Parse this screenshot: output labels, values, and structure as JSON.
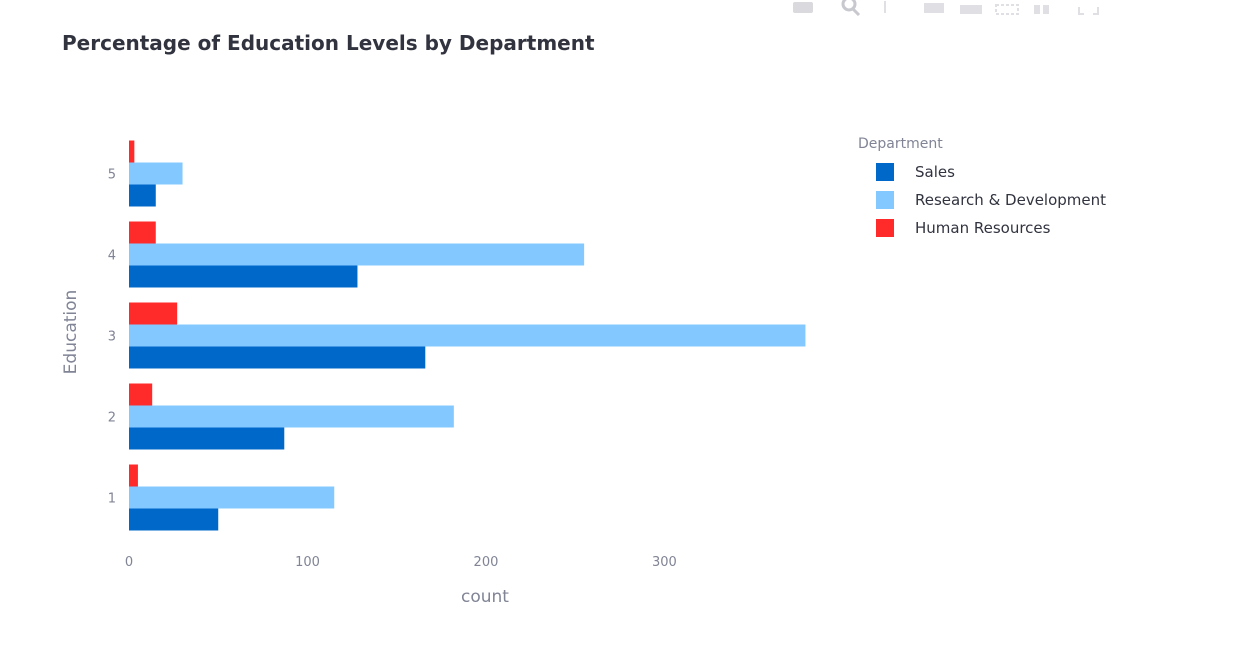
{
  "modebar": {
    "tools": [
      "camera-icon",
      "zoom-icon",
      "pan-icon",
      "box-select-icon",
      "lasso-icon",
      "zoom-in-icon",
      "zoom-out-icon",
      "autoscale-icon",
      "reset-axes-icon",
      "fullscreen-icon"
    ]
  },
  "chart_data": {
    "type": "bar",
    "orientation": "horizontal",
    "barmode": "group",
    "title": "Percentage of Education Levels by Department",
    "xlabel": "count",
    "ylabel": "Education",
    "xlim": [
      0,
      395
    ],
    "x_ticks": [
      0,
      100,
      200,
      300
    ],
    "categories": [
      "1",
      "2",
      "3",
      "4",
      "5"
    ],
    "legend_title": "Department",
    "legend_position": "top-right",
    "grid": false,
    "series": [
      {
        "name": "Sales",
        "color": "#0068c9",
        "values": [
          50,
          87,
          166,
          128,
          15
        ]
      },
      {
        "name": "Research & Development",
        "color": "#83c9ff",
        "values": [
          115,
          182,
          379,
          255,
          30
        ]
      },
      {
        "name": "Human Resources",
        "color": "#ff2b2b",
        "values": [
          5,
          13,
          27,
          15,
          3
        ]
      }
    ]
  }
}
